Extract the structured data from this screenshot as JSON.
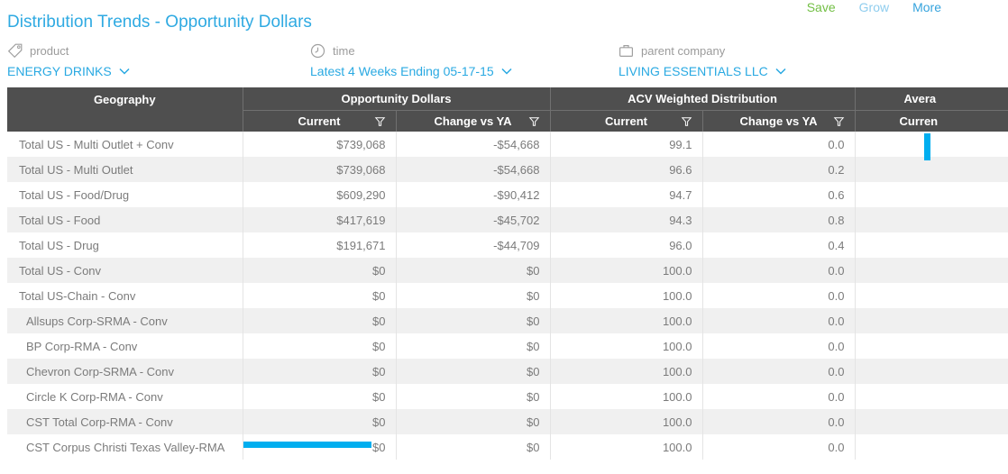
{
  "page": {
    "title": "Distribution Trends - Opportunity Dollars",
    "actions": {
      "save": "Save",
      "grow": "Grow",
      "more": "More"
    }
  },
  "theme": {
    "accent_blue": "#29a9e2",
    "save_green": "#72bf44",
    "grow_light_blue": "#8fcdee",
    "header_bg": "#4f4f4f",
    "zebra_row": "#f0f0f0",
    "scrollbar_blue": "#00aeef"
  },
  "filters": [
    {
      "icon": "tag-icon",
      "label": "product",
      "value": "ENERGY DRINKS"
    },
    {
      "icon": "clock-icon",
      "label": "time",
      "value": "Latest 4 Weeks Ending 05-17-15"
    },
    {
      "icon": "briefcase-icon",
      "label": "parent company",
      "value": "LIVING ESSENTIALS LLC"
    }
  ],
  "table": {
    "geography_header": "Geography",
    "groups": [
      {
        "label": "Opportunity Dollars",
        "columns": [
          {
            "label": "Current"
          },
          {
            "label": "Change vs YA"
          }
        ]
      },
      {
        "label": "ACV Weighted Distribution",
        "columns": [
          {
            "label": "Current"
          },
          {
            "label": "Change vs YA"
          }
        ]
      },
      {
        "label": "Avera",
        "columns": [
          {
            "label": "Curren"
          }
        ]
      }
    ],
    "rows": [
      {
        "geography": "Total US - Multi Outlet + Conv",
        "indent": false,
        "opp_current": "$739,068",
        "opp_change_vs_ya": "-$54,668",
        "acv_current": "99.1",
        "acv_change_vs_ya": "0.0",
        "avg_current": ""
      },
      {
        "geography": "Total US - Multi Outlet",
        "indent": false,
        "opp_current": "$739,068",
        "opp_change_vs_ya": "-$54,668",
        "acv_current": "96.6",
        "acv_change_vs_ya": "0.2",
        "avg_current": ""
      },
      {
        "geography": "Total US - Food/Drug",
        "indent": false,
        "opp_current": "$609,290",
        "opp_change_vs_ya": "-$90,412",
        "acv_current": "94.7",
        "acv_change_vs_ya": "0.6",
        "avg_current": ""
      },
      {
        "geography": "Total US - Food",
        "indent": false,
        "opp_current": "$417,619",
        "opp_change_vs_ya": "-$45,702",
        "acv_current": "94.3",
        "acv_change_vs_ya": "0.8",
        "avg_current": ""
      },
      {
        "geography": "Total US - Drug",
        "indent": false,
        "opp_current": "$191,671",
        "opp_change_vs_ya": "-$44,709",
        "acv_current": "96.0",
        "acv_change_vs_ya": "0.4",
        "avg_current": ""
      },
      {
        "geography": "Total US - Conv",
        "indent": false,
        "opp_current": "$0",
        "opp_change_vs_ya": "$0",
        "acv_current": "100.0",
        "acv_change_vs_ya": "0.0",
        "avg_current": ""
      },
      {
        "geography": "Total US-Chain - Conv",
        "indent": false,
        "opp_current": "$0",
        "opp_change_vs_ya": "$0",
        "acv_current": "100.0",
        "acv_change_vs_ya": "0.0",
        "avg_current": ""
      },
      {
        "geography": "Allsups Corp-SRMA - Conv",
        "indent": true,
        "opp_current": "$0",
        "opp_change_vs_ya": "$0",
        "acv_current": "100.0",
        "acv_change_vs_ya": "0.0",
        "avg_current": ""
      },
      {
        "geography": "BP Corp-RMA - Conv",
        "indent": true,
        "opp_current": "$0",
        "opp_change_vs_ya": "$0",
        "acv_current": "100.0",
        "acv_change_vs_ya": "0.0",
        "avg_current": ""
      },
      {
        "geography": "Chevron Corp-SRMA - Conv",
        "indent": true,
        "opp_current": "$0",
        "opp_change_vs_ya": "$0",
        "acv_current": "100.0",
        "acv_change_vs_ya": "0.0",
        "avg_current": ""
      },
      {
        "geography": "Circle K Corp-RMA - Conv",
        "indent": true,
        "opp_current": "$0",
        "opp_change_vs_ya": "$0",
        "acv_current": "100.0",
        "acv_change_vs_ya": "0.0",
        "avg_current": ""
      },
      {
        "geography": "CST Total Corp-RMA - Conv",
        "indent": true,
        "opp_current": "$0",
        "opp_change_vs_ya": "$0",
        "acv_current": "100.0",
        "acv_change_vs_ya": "0.0",
        "avg_current": ""
      },
      {
        "geography": "CST Corpus Christi Texas Valley-RMA",
        "indent": true,
        "opp_current": "$0",
        "opp_change_vs_ya": "$0",
        "acv_current": "100.0",
        "acv_change_vs_ya": "0.0",
        "avg_current": ""
      }
    ]
  }
}
